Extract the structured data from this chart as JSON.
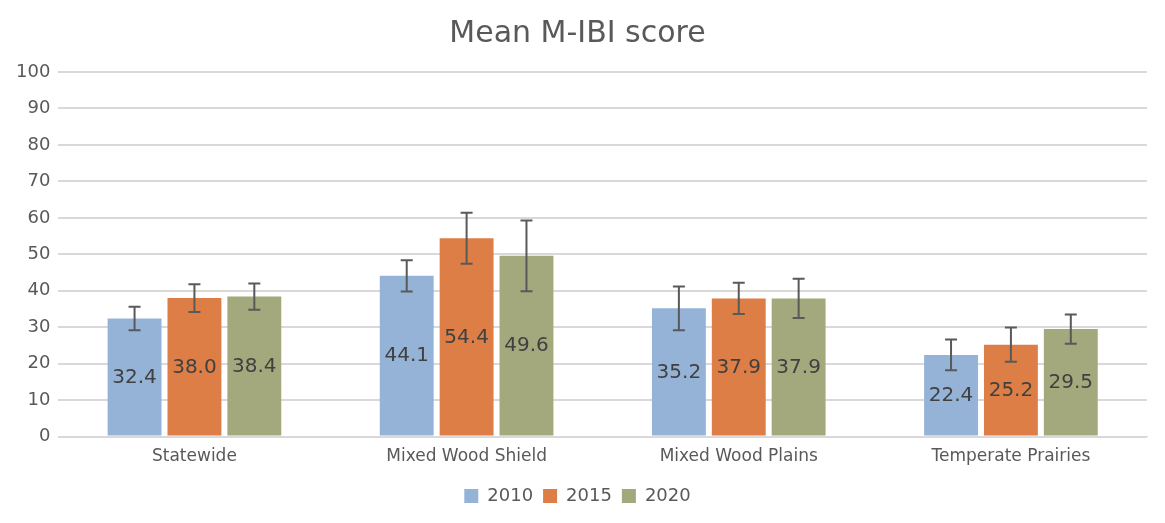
{
  "chart_data": {
    "type": "bar",
    "title": "Mean M-IBI score",
    "categories": [
      "Statewide",
      "Mixed Wood Shield",
      "Mixed Wood Plains",
      "Temperate Prairies"
    ],
    "series": [
      {
        "name": "2010",
        "color": "#95b3d7",
        "values": [
          32.4,
          44.1,
          35.2,
          22.4
        ],
        "value_labels": [
          "32.4",
          "44.1",
          "35.2",
          "22.4"
        ],
        "errors": [
          3.2,
          4.3,
          6,
          4.2
        ]
      },
      {
        "name": "2015",
        "color": "#dd7e47",
        "values": [
          38.0,
          54.4,
          37.9,
          25.2
        ],
        "value_labels": [
          "38.0",
          "54.4",
          "37.9",
          "25.2"
        ],
        "errors": [
          3.8,
          7,
          4.3,
          4.7
        ]
      },
      {
        "name": "2020",
        "color": "#a3a97c",
        "values": [
          38.4,
          49.6,
          37.9,
          29.5
        ],
        "value_labels": [
          "38.4",
          "49.6",
          "37.9",
          "29.5"
        ],
        "errors": [
          3.6,
          9.7,
          5.4,
          4
        ]
      }
    ],
    "ylim": [
      0,
      100
    ],
    "yticks": [
      0,
      10,
      20,
      30,
      40,
      50,
      60,
      70,
      80,
      90,
      100
    ],
    "grid": "y",
    "legend": "bottom"
  }
}
